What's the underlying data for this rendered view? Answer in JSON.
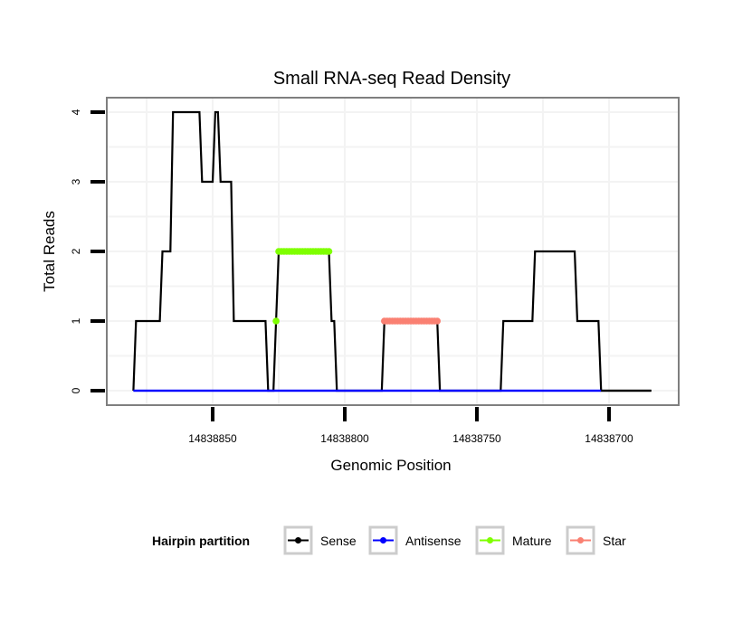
{
  "chart_data": {
    "type": "line",
    "title": "Small RNA-seq Read Density",
    "xlabel": "Genomic Position",
    "ylabel": "Total Reads",
    "x_reversed": true,
    "xlim": [
      14838890,
      14838672
    ],
    "ylim": [
      -0.2,
      4.2
    ],
    "x_ticks": [
      14838850,
      14838800,
      14838750,
      14838700
    ],
    "x_tick_labels": [
      "14838850",
      "14838800",
      "14838750",
      "14838700"
    ],
    "y_ticks": [
      0,
      1,
      2,
      3,
      4
    ],
    "y_tick_labels": [
      "0",
      "1",
      "2",
      "3",
      "4"
    ],
    "grid": true,
    "legend": {
      "title": "Hairpin partition",
      "position": "bottom",
      "entries": [
        {
          "name": "Sense",
          "color": "#000000"
        },
        {
          "name": "Antisense",
          "color": "#0000ff"
        },
        {
          "name": "Mature",
          "color": "#7fff00"
        },
        {
          "name": "Star",
          "color": "#fa8072"
        }
      ]
    },
    "series": [
      {
        "name": "Sense",
        "color": "#000000",
        "x": [
          14838880,
          14838879,
          14838870,
          14838869,
          14838866,
          14838865,
          14838855,
          14838854,
          14838850,
          14838849,
          14838848,
          14838847,
          14838843,
          14838842,
          14838830,
          14838829,
          14838827,
          14838825,
          14838806,
          14838805,
          14838804,
          14838803,
          14838786,
          14838785,
          14838765,
          14838764,
          14838741,
          14838740,
          14838729,
          14838728,
          14838713,
          14838712,
          14838704,
          14838703,
          14838684
        ],
        "y": [
          0,
          1,
          1,
          2,
          2,
          4,
          4,
          3,
          3,
          4,
          4,
          3,
          3,
          1,
          1,
          0,
          0,
          2,
          2,
          1,
          1,
          0,
          0,
          1,
          1,
          0,
          0,
          1,
          1,
          2,
          2,
          1,
          1,
          0,
          0
        ]
      },
      {
        "name": "Antisense",
        "color": "#0000ff",
        "x": [
          14838880,
          14838703
        ],
        "y": [
          0,
          0
        ]
      },
      {
        "name": "Mature",
        "color": "#7fff00",
        "x": [
          14838826,
          14838825,
          14838824,
          14838823,
          14838822,
          14838821,
          14838820,
          14838819,
          14838818,
          14838817,
          14838816,
          14838815,
          14838814,
          14838813,
          14838812,
          14838811,
          14838810,
          14838809,
          14838808,
          14838807,
          14838806
        ],
        "y": [
          1,
          2,
          2,
          2,
          2,
          2,
          2,
          2,
          2,
          2,
          2,
          2,
          2,
          2,
          2,
          2,
          2,
          2,
          2,
          2,
          2
        ]
      },
      {
        "name": "Star",
        "color": "#fa8072",
        "x": [
          14838785,
          14838784,
          14838783,
          14838782,
          14838781,
          14838780,
          14838779,
          14838778,
          14838777,
          14838776,
          14838775,
          14838774,
          14838773,
          14838772,
          14838771,
          14838770,
          14838769,
          14838768,
          14838767,
          14838766,
          14838765
        ],
        "y": [
          1,
          1,
          1,
          1,
          1,
          1,
          1,
          1,
          1,
          1,
          1,
          1,
          1,
          1,
          1,
          1,
          1,
          1,
          1,
          1,
          1
        ]
      }
    ]
  }
}
